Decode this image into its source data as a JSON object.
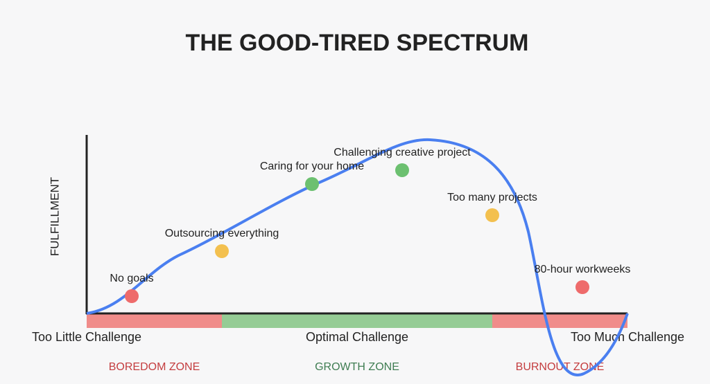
{
  "title": "THE GOOD-TIRED SPECTRUM",
  "y_axis_label": "FULFILLMENT",
  "x_labels": [
    "Too Little Challenge",
    "Optimal Challenge",
    "Too Much Challenge"
  ],
  "zones": [
    {
      "label": "BOREDOM ZONE",
      "color": "#f08c8a",
      "text_color": "#c43d3f"
    },
    {
      "label": "GROWTH ZONE",
      "color": "#95cc95",
      "text_color": "#3f7d52"
    },
    {
      "label": "BURNOUT ZONE",
      "color": "#f08c8a",
      "text_color": "#c43d3f"
    }
  ],
  "points": [
    {
      "label": "No goals",
      "color": "#ee6b6b"
    },
    {
      "label": "Outsourcing everything",
      "color": "#f3c04f"
    },
    {
      "label": "Caring for your home",
      "color": "#6cc070"
    },
    {
      "label": "Challenging creative project",
      "color": "#6cc070"
    },
    {
      "label": "Too many projects",
      "color": "#f3c04f"
    },
    {
      "label": "80-hour workweeks",
      "color": "#ee6b6b"
    }
  ],
  "curve_color": "#4a7ff0"
}
